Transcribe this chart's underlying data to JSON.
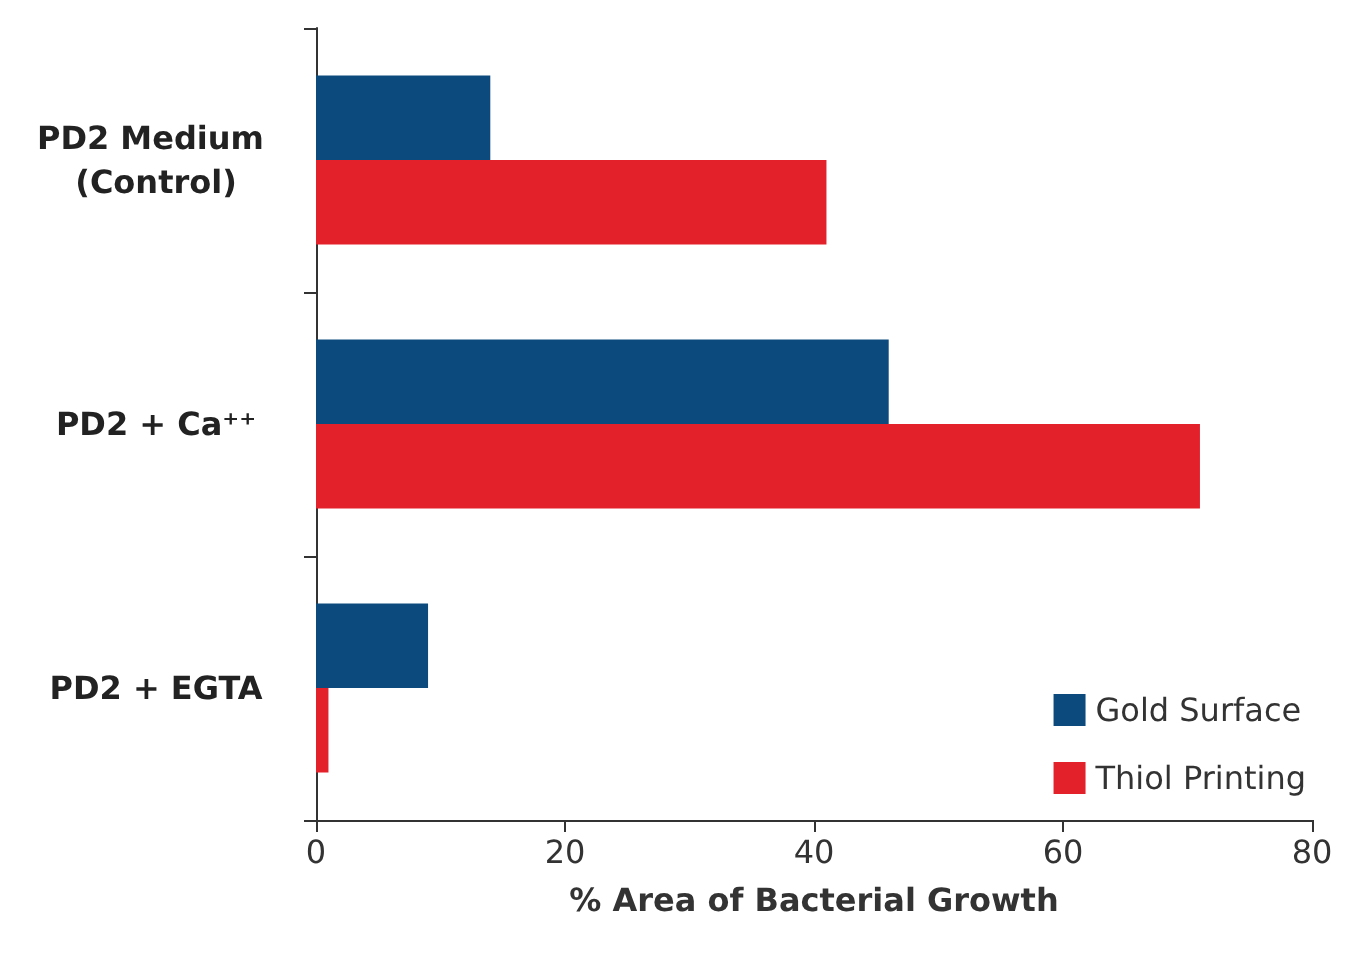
{
  "chart_data": {
    "type": "bar",
    "orientation": "horizontal",
    "xlabel": "% Area of Bacterial Growth",
    "categories": [
      "PD2 Medium (Control)",
      "PD2 + Ca⁺⁺",
      "PD2 + EGTA"
    ],
    "series": [
      {
        "name": "Gold Surface",
        "color": "#0c4a7e",
        "values": [
          14,
          46,
          9
        ]
      },
      {
        "name": "Thiol Printing",
        "color": "#e3212b",
        "values": [
          41,
          71,
          1
        ]
      }
    ],
    "xlim": [
      0,
      80
    ],
    "xticks": [
      0,
      20,
      40,
      60,
      80
    ],
    "grid": false,
    "legend": "bottom right"
  }
}
